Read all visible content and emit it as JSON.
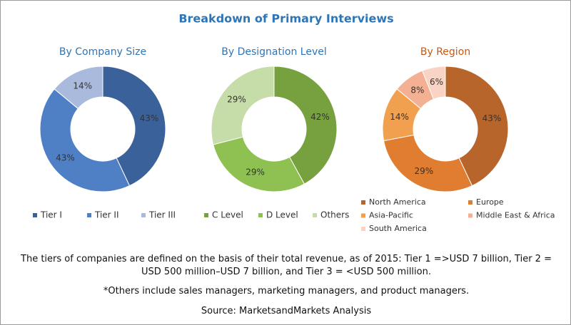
{
  "title": "Breakdown of Primary Interviews",
  "notes": [
    "The tiers of companies are defined on the basis of their total revenue, as of 2015: Tier 1 =>USD 7 billion, Tier 2 = USD 500 million–USD 7 billion, and Tier 3 = <USD 500 million.",
    "*Others include sales managers, marketing managers, and product managers.",
    "Source: MarketsandMarkets Analysis"
  ],
  "chart_data": [
    {
      "type": "pie",
      "title": "By Company Size",
      "title_color": "#2e75b6",
      "categories": [
        "Tier I",
        "Tier II",
        "Tier III"
      ],
      "values": [
        43,
        43,
        14
      ],
      "value_labels": [
        "43%",
        "43%",
        "14%"
      ],
      "colors": [
        "#3b619b",
        "#4f80c6",
        "#a9badd"
      ],
      "legend": "bottom"
    },
    {
      "type": "pie",
      "title": "By Designation Level",
      "title_color": "#2e75b6",
      "categories": [
        "C Level",
        "D Level",
        "Others"
      ],
      "values": [
        42,
        29,
        29
      ],
      "value_labels": [
        "42%",
        "29%",
        "29%"
      ],
      "colors": [
        "#77a13f",
        "#8fc152",
        "#c6dca9"
      ],
      "legend": "bottom"
    },
    {
      "type": "pie",
      "title": "By Region",
      "title_color": "#c55a11",
      "categories": [
        "North America",
        "Europe",
        "Asia-Pacific",
        "Middle East & Africa",
        "South America"
      ],
      "values": [
        43,
        29,
        14,
        8,
        6
      ],
      "value_labels": [
        "43%",
        "29%",
        "14%",
        "8%",
        "6%"
      ],
      "colors": [
        "#b8652b",
        "#e07d30",
        "#f0a04e",
        "#f4b093",
        "#f9d4c5"
      ],
      "legend": "bottom"
    }
  ]
}
